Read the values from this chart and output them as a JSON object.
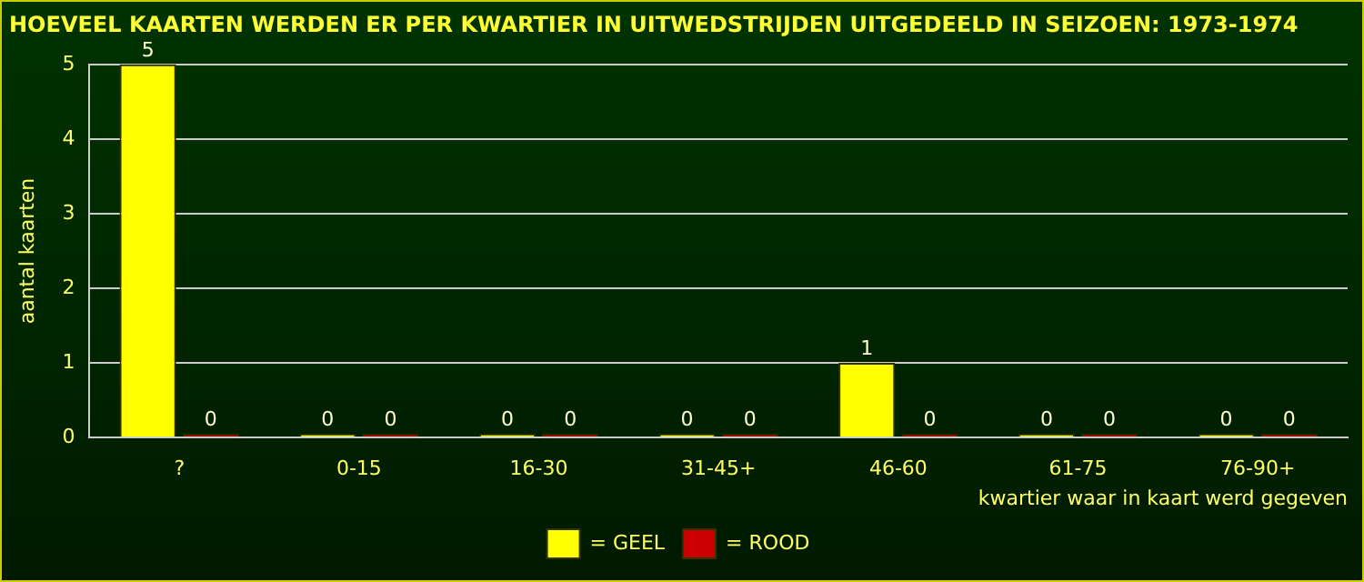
{
  "chart_data": {
    "type": "bar",
    "title": "HOEVEEL KAARTEN WERDEN ER PER KWARTIER IN UITWEDSTRIJDEN UITGEDEELD IN SEIZOEN: 1973-1974",
    "xlabel": "kwartier waar in kaart werd gegeven",
    "ylabel": "aantal kaarten",
    "categories": [
      "?",
      "0-15",
      "16-30",
      "31-45+",
      "46-60",
      "61-75",
      "76-90+"
    ],
    "series": [
      {
        "name": "= GEEL",
        "color": "#ffff00",
        "values": [
          5,
          0,
          0,
          0,
          1,
          0,
          0
        ]
      },
      {
        "name": "= ROOD",
        "color": "#cc0000",
        "values": [
          0,
          0,
          0,
          0,
          0,
          0,
          0
        ]
      }
    ],
    "ylim": [
      0,
      5
    ],
    "yticks": [
      0,
      1,
      2,
      3,
      4,
      5
    ],
    "grid": "y",
    "legend": "bottom",
    "data_labels": true
  }
}
